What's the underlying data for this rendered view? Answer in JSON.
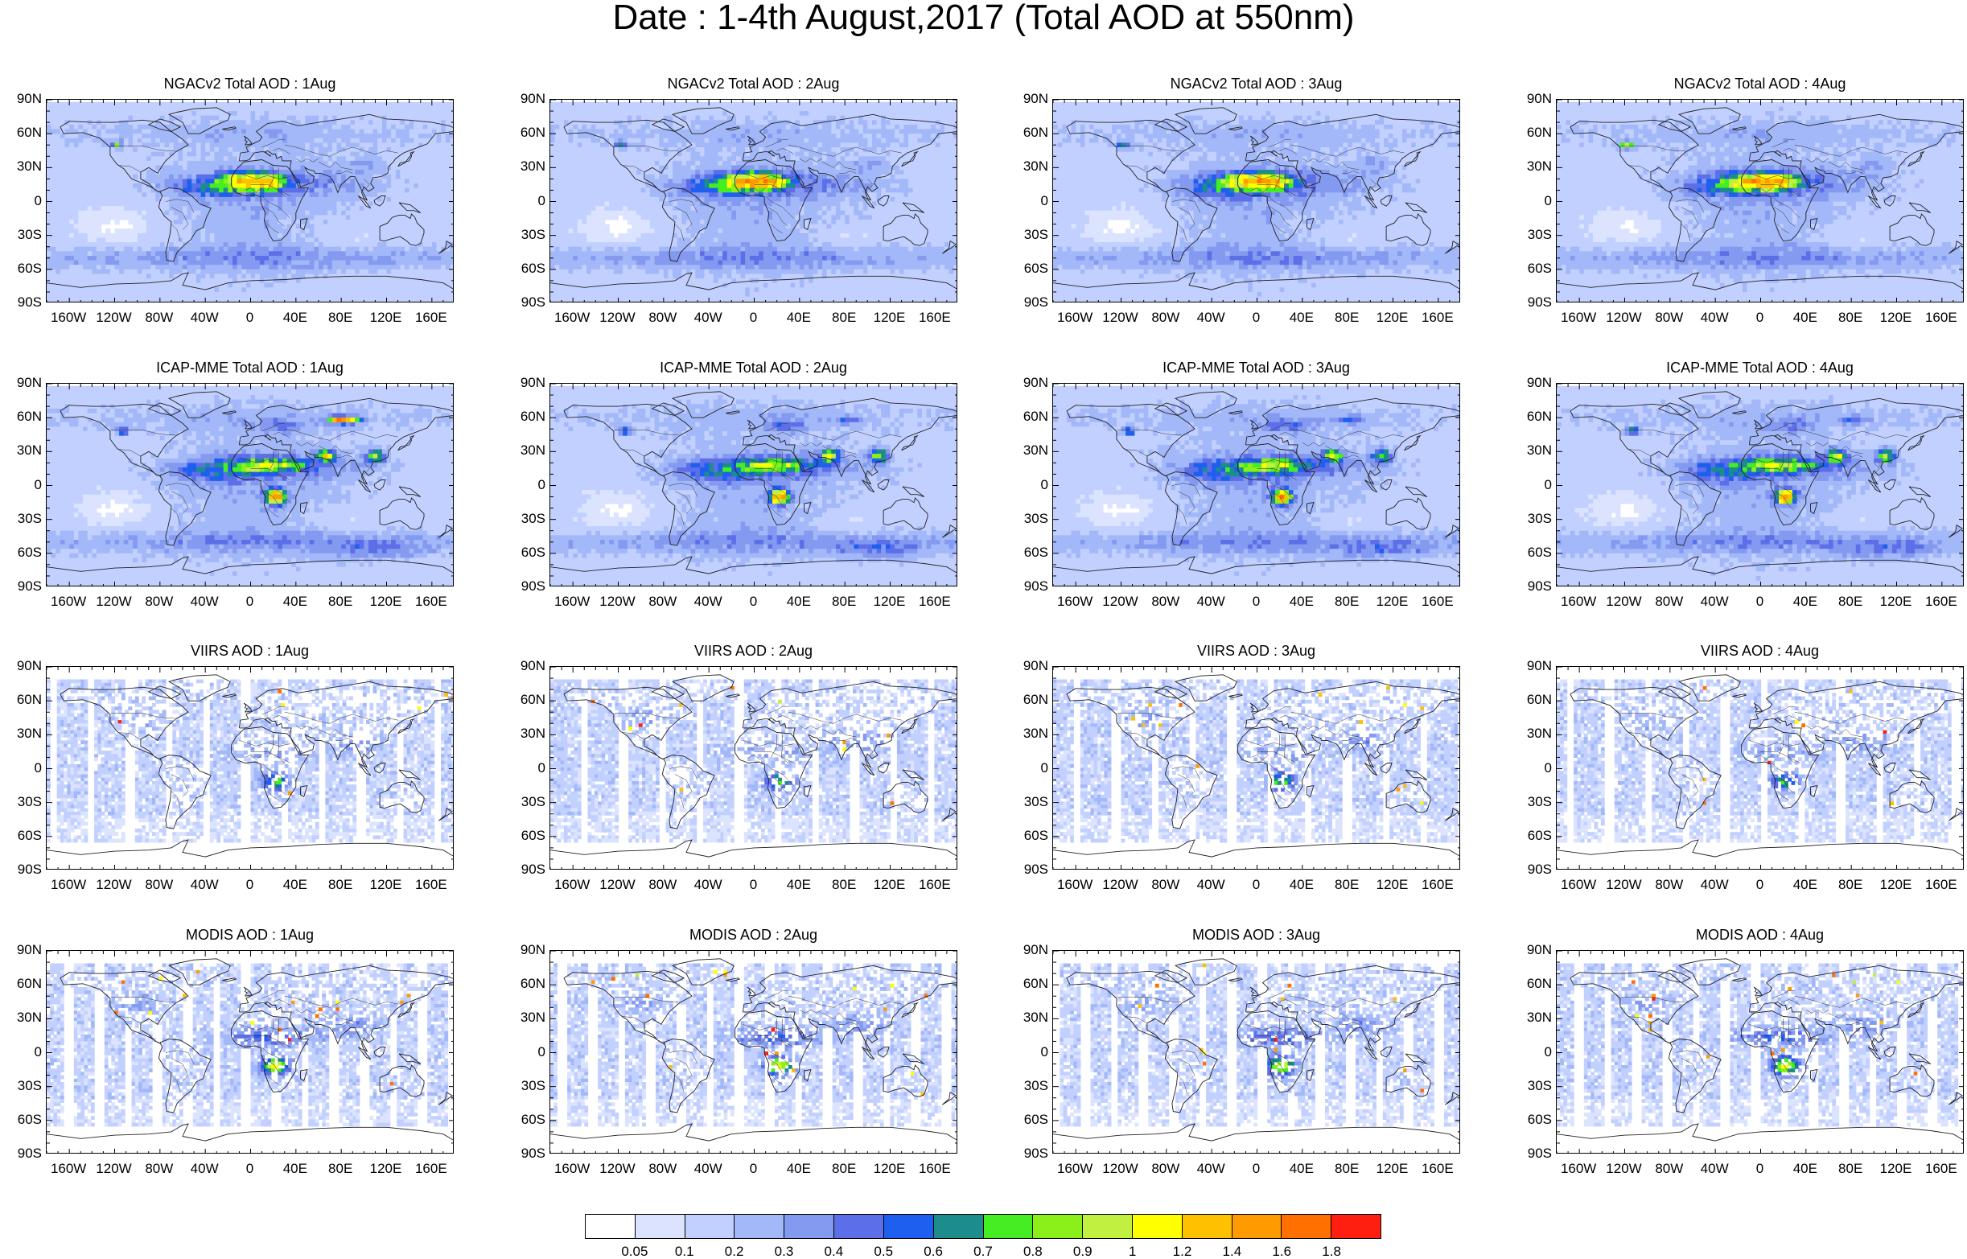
{
  "title": "Date : 1-4th August,2017 (Total AOD at 550nm)",
  "panels": [
    {
      "title": "NGACv2 Total AOD : 1Aug",
      "kind": "ngac"
    },
    {
      "title": "NGACv2 Total AOD : 2Aug",
      "kind": "ngac"
    },
    {
      "title": "NGACv2 Total AOD : 3Aug",
      "kind": "ngac"
    },
    {
      "title": "NGACv2 Total AOD : 4Aug",
      "kind": "ngac"
    },
    {
      "title": "ICAP-MME Total AOD : 1Aug",
      "kind": "icap"
    },
    {
      "title": "ICAP-MME Total AOD : 2Aug",
      "kind": "icap"
    },
    {
      "title": "ICAP-MME Total AOD : 3Aug",
      "kind": "icap"
    },
    {
      "title": "ICAP-MME Total AOD : 4Aug",
      "kind": "icap"
    },
    {
      "title": "VIIRS AOD : 1Aug",
      "kind": "viirs"
    },
    {
      "title": "VIIRS AOD : 2Aug",
      "kind": "viirs"
    },
    {
      "title": "VIIRS AOD : 3Aug",
      "kind": "viirs"
    },
    {
      "title": "VIIRS AOD : 4Aug",
      "kind": "viirs"
    },
    {
      "title": "MODIS AOD : 1Aug",
      "kind": "modis"
    },
    {
      "title": "MODIS AOD : 2Aug",
      "kind": "modis"
    },
    {
      "title": "MODIS AOD : 3Aug",
      "kind": "modis"
    },
    {
      "title": "MODIS AOD : 4Aug",
      "kind": "modis"
    }
  ],
  "y_ticks": [
    "90N",
    "60N",
    "30N",
    "0",
    "30S",
    "60S",
    "90S"
  ],
  "x_ticks": [
    "160W",
    "120W",
    "80W",
    "40W",
    "0",
    "40E",
    "80E",
    "120E",
    "160E"
  ],
  "colorbar": {
    "labels": [
      "0.05",
      "0.1",
      "0.2",
      "0.3",
      "0.4",
      "0.5",
      "0.6",
      "0.7",
      "0.8",
      "0.9",
      "1",
      "1.2",
      "1.4",
      "1.6",
      "1.8"
    ],
    "colors": [
      "#ffffff",
      "#dbe3ff",
      "#c2d0ff",
      "#a3b8f8",
      "#8499f0",
      "#5d6fe8",
      "#1f5ff0",
      "#1c8c8c",
      "#44ee22",
      "#8bf01a",
      "#c2f040",
      "#ffff00",
      "#ffc000",
      "#ff9a00",
      "#ff7000",
      "#ff1f10"
    ]
  }
}
